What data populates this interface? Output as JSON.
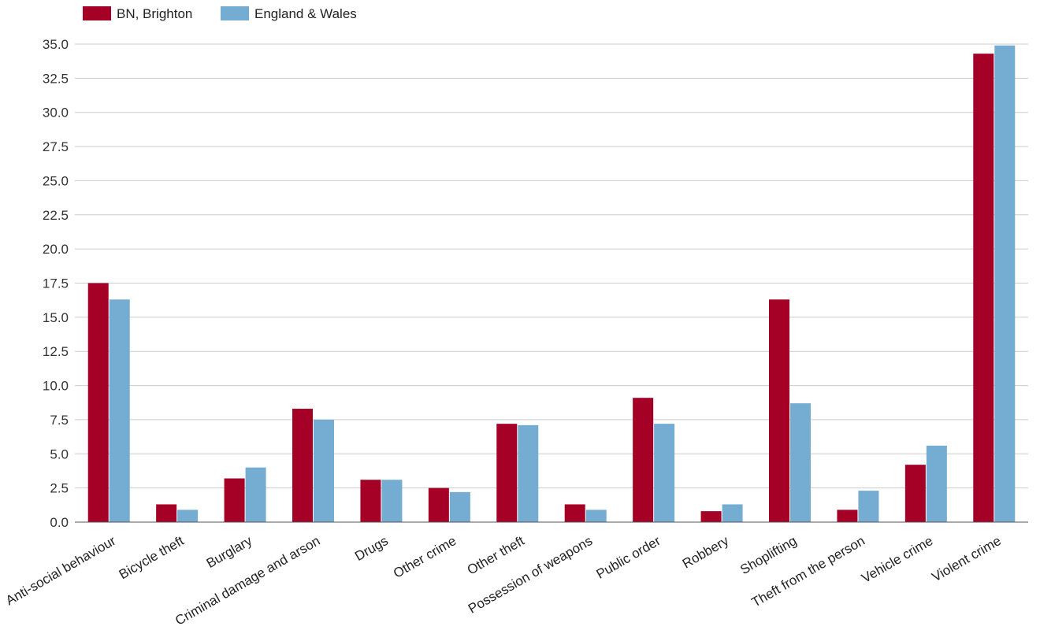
{
  "chart_data": {
    "type": "bar",
    "title": "",
    "xlabel": "",
    "ylabel": "",
    "ylim": [
      0,
      35
    ],
    "yticks": [
      "0.0",
      "2.5",
      "5.0",
      "7.5",
      "10.0",
      "12.5",
      "15.0",
      "17.5",
      "20.0",
      "22.5",
      "25.0",
      "27.5",
      "30.0",
      "32.5",
      "35.0"
    ],
    "grid": true,
    "legend_position": "top-left",
    "categories": [
      "Anti-social behaviour",
      "Bicycle theft",
      "Burglary",
      "Criminal damage and arson",
      "Drugs",
      "Other crime",
      "Other theft",
      "Possession of weapons",
      "Public order",
      "Robbery",
      "Shoplifting",
      "Theft from the person",
      "Vehicle crime",
      "Violent crime"
    ],
    "series": [
      {
        "name": "BN, Brighton",
        "color": "#a50026",
        "values": [
          17.5,
          1.3,
          3.2,
          8.3,
          3.1,
          2.5,
          7.2,
          1.3,
          9.1,
          0.8,
          16.3,
          0.9,
          4.2,
          34.3
        ]
      },
      {
        "name": "England & Wales",
        "color": "#74add1",
        "values": [
          16.3,
          0.9,
          4.0,
          7.5,
          3.1,
          2.2,
          7.1,
          0.9,
          7.2,
          1.3,
          8.7,
          2.3,
          5.6,
          34.9
        ]
      }
    ]
  }
}
